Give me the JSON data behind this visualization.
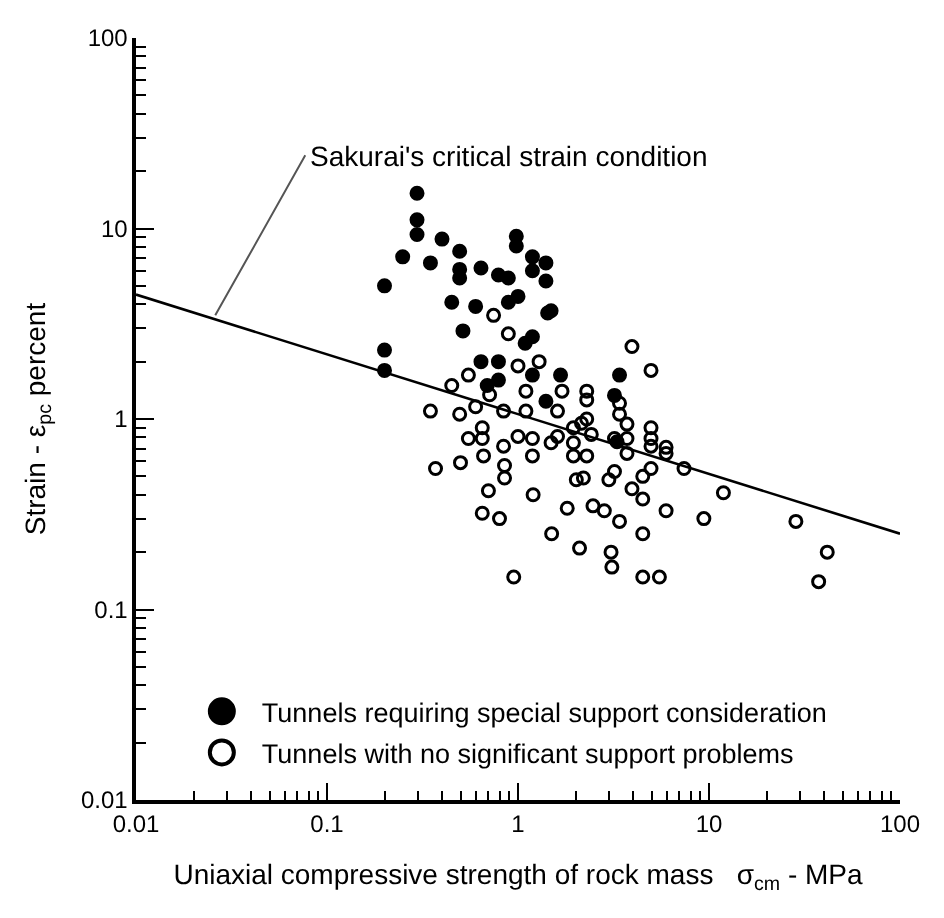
{
  "chart_data": {
    "type": "scatter",
    "xlabel": "Uniaxial compressive strength of rock mass   σ$_{cm}$ - MPa",
    "ylabel": "Strain - ε$_{pc}$ percent",
    "log": "xy",
    "xlim": [
      0.01,
      100
    ],
    "xticks": [
      0.01,
      0.1,
      1,
      10,
      100
    ],
    "ylim": [
      0.01,
      100
    ],
    "yticks": [
      0.01,
      0.1,
      1,
      10,
      100
    ],
    "grid": false,
    "legend": "bottom left",
    "annotations": [
      {
        "text": "Sakurai's critical strain condition",
        "x": 0.026,
        "y": 3.5
      }
    ],
    "series": [
      {
        "name": "Tunnels requiring special support consideration",
        "color": "#000000",
        "marker": "circle",
        "x": [
          0.296,
          0.296,
          0.296,
          0.249,
          0.348,
          0.4,
          0.2,
          0.2,
          0.2,
          0.495,
          0.495,
          0.495,
          0.45,
          0.515,
          0.6,
          0.64,
          0.69,
          0.79,
          0.79,
          0.64,
          0.79,
          0.89,
          0.89,
          0.98,
          0.98,
          1.0,
          1.19,
          1.19,
          1.4,
          1.4,
          1.43,
          1.49,
          1.19,
          1.09,
          1.19,
          1.67,
          1.4,
          3.4,
          3.2,
          3.3
        ],
        "values": [
          15.3,
          11.1,
          9.3,
          7.1,
          6.6,
          8.8,
          5.0,
          2.3,
          1.8,
          7.6,
          6.1,
          5.5,
          4.1,
          2.9,
          3.9,
          2.0,
          1.5,
          2.0,
          1.6,
          6.2,
          5.7,
          5.5,
          4.1,
          9.1,
          8.1,
          4.4,
          7.1,
          6.0,
          6.6,
          5.3,
          3.6,
          3.7,
          2.7,
          2.5,
          1.7,
          1.7,
          1.24,
          1.7,
          1.33,
          0.76
        ]
      },
      {
        "name": "Tunnels with no significant support problems",
        "color": "#000000",
        "marker": "circle-open",
        "x": [
          0.745,
          0.89,
          1.29,
          1.0,
          0.55,
          0.45,
          1.1,
          0.71,
          1.7,
          2.29,
          2.29,
          3.95,
          4.97,
          0.348,
          0.495,
          0.6,
          0.84,
          1.1,
          1.61,
          0.65,
          0.55,
          0.65,
          0.66,
          0.84,
          1.0,
          1.19,
          1.19,
          1.49,
          1.61,
          1.95,
          2.15,
          2.29,
          1.95,
          2.42,
          1.95,
          2.29,
          3.4,
          3.4,
          3.72,
          3.2,
          3.72,
          3.72,
          4.97,
          4.97,
          4.97,
          5.96,
          5.96,
          7.4,
          11.9,
          9.4,
          28.5,
          41.6,
          37.5,
          0.37,
          0.5,
          0.7,
          0.65,
          0.8,
          0.85,
          0.85,
          1.2,
          0.95,
          1.5,
          1.81,
          2.1,
          2.02,
          2.2,
          2.47,
          2.83,
          2.99,
          3.2,
          3.4,
          3.07,
          3.1,
          3.95,
          4.5,
          4.97,
          4.5,
          4.5,
          4.5,
          5.5,
          5.96
        ],
        "values": [
          3.5,
          2.8,
          2.0,
          1.9,
          1.7,
          1.5,
          1.4,
          1.34,
          1.4,
          1.4,
          1.26,
          2.4,
          1.8,
          1.1,
          1.06,
          1.16,
          1.1,
          1.1,
          1.1,
          0.9,
          0.79,
          0.79,
          0.64,
          0.72,
          0.81,
          0.79,
          0.64,
          0.75,
          0.81,
          0.9,
          0.95,
          1.0,
          0.75,
          0.83,
          0.64,
          0.64,
          1.21,
          1.06,
          0.94,
          0.79,
          0.79,
          0.66,
          0.9,
          0.79,
          0.72,
          0.71,
          0.66,
          0.55,
          0.41,
          0.3,
          0.29,
          0.2,
          0.14,
          0.55,
          0.59,
          0.42,
          0.32,
          0.3,
          0.57,
          0.49,
          0.4,
          0.148,
          0.25,
          0.34,
          0.21,
          0.48,
          0.49,
          0.35,
          0.33,
          0.48,
          0.53,
          0.29,
          0.2,
          0.167,
          0.43,
          0.5,
          0.55,
          0.38,
          0.25,
          0.148,
          0.148,
          0.33
        ]
      },
      {
        "type": "line",
        "color": "#000000",
        "line_style": "solid",
        "marker": "none",
        "x": [
          0.01,
          100
        ],
        "values": [
          4.5,
          0.25
        ]
      }
    ]
  }
}
